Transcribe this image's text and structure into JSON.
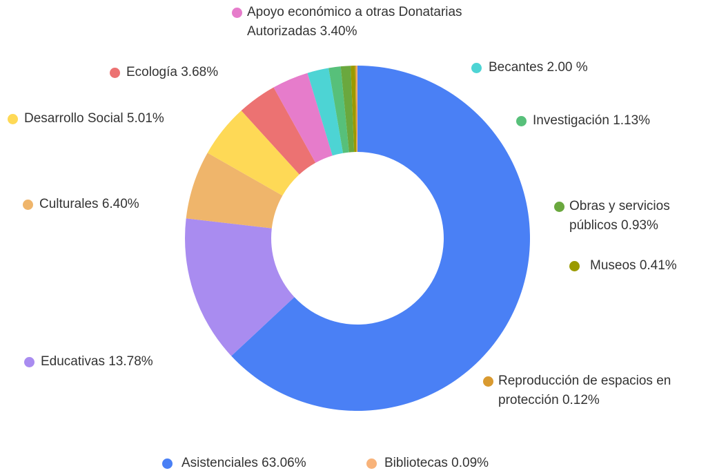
{
  "chart_data": {
    "type": "donut",
    "categories": [
      "Asistenciales",
      "Educativas",
      "Culturales",
      "Desarrollo Social",
      "Ecología",
      "Apoyo económico a otras Donatarias Autorizadas",
      "Becantes",
      "Investigación",
      "Obras y servicios públicos",
      "Museos",
      "Reproducción de espacios en protección",
      "Bibliotecas"
    ],
    "values": [
      63.06,
      13.78,
      6.4,
      5.01,
      3.68,
      3.4,
      2.0,
      1.13,
      0.93,
      0.41,
      0.12,
      0.09
    ],
    "value_labels": [
      "63.06%",
      "13.78%",
      "6.40%",
      "5.01%",
      "3.68%",
      "3.40%",
      "2.00 %",
      "1.13%",
      "0.93%",
      "0.41%",
      "0.12%",
      "0.09%"
    ],
    "colors": [
      "#4a80f5",
      "#a98cf0",
      "#efb56b",
      "#fed956",
      "#ec7272",
      "#e67ccb",
      "#4dd4d4",
      "#57c07a",
      "#6aa83e",
      "#9a9a00",
      "#d99a30",
      "#f8b37a"
    ]
  }
}
